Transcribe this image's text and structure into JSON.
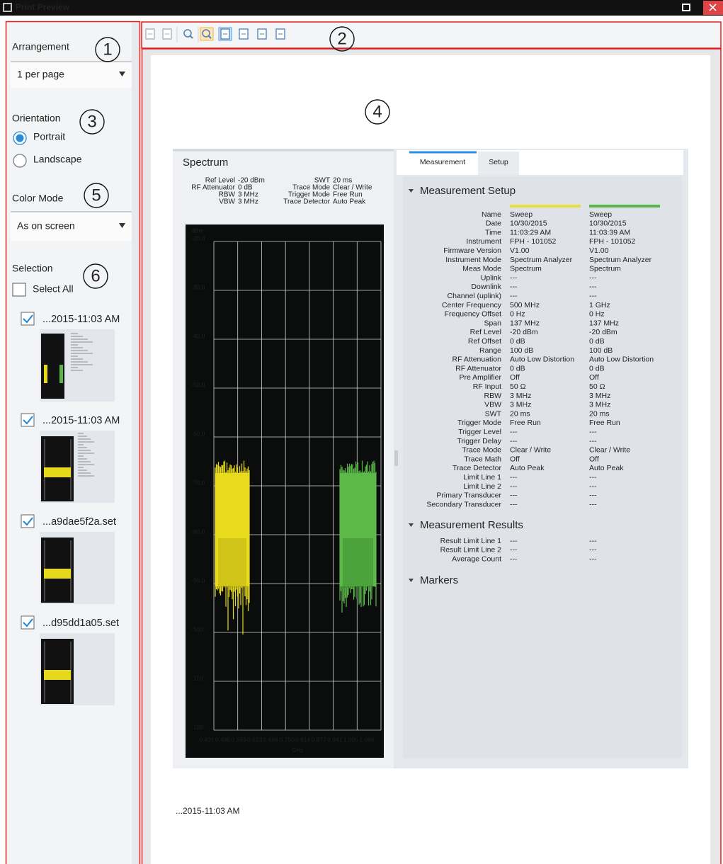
{
  "window": {
    "title": "Print Preview"
  },
  "callouts": [
    "1",
    "2",
    "3",
    "4",
    "5",
    "6"
  ],
  "sidebar": {
    "arrangement": {
      "label": "Arrangement",
      "value": "1 per page"
    },
    "orientation": {
      "label": "Orientation",
      "options": [
        "Portrait",
        "Landscape"
      ]
    },
    "color_mode": {
      "label": "Color Mode",
      "value": "As on screen"
    },
    "selection": {
      "label": "Selection",
      "select_all": "Select All",
      "items": [
        "...2015-11:03 AM",
        "...2015-11:03 AM",
        "...a9dae5f2a.set",
        "...d95dd1a05.set"
      ]
    }
  },
  "preview": {
    "caption": "...2015-11:03 AM",
    "spectrum": {
      "title": "Spectrum",
      "params_left": [
        [
          "Ref Level",
          "-20 dBm"
        ],
        [
          "RF Attenuator",
          "0 dB"
        ],
        [
          "RBW",
          "3 MHz"
        ],
        [
          "VBW",
          "3 MHz"
        ]
      ],
      "params_right": [
        [
          "SWT",
          "20 ms"
        ],
        [
          "Trace Mode",
          "Clear / Write"
        ],
        [
          "Trigger Mode",
          "Free Run"
        ],
        [
          "Trace Detector",
          "Auto Peak"
        ]
      ],
      "y_unit": "dBm",
      "y_labels": [
        "-20.0",
        "-30.0",
        "-40.0",
        "-50.0",
        "-60.0",
        "-70.0",
        "-80.0",
        "-90.0",
        "-100",
        "-110",
        "-120"
      ],
      "x_labels": [
        "0.431",
        "0.495",
        "0.559",
        "0.623",
        "0.686",
        "0.750",
        "0.814",
        "0.877",
        "0.941",
        "1.005",
        "1.068"
      ],
      "x_unit": "GHz"
    },
    "measurement": {
      "tabs": [
        "Measurement",
        "Setup"
      ],
      "setup_title": "Measurement Setup",
      "setup_rows": [
        [
          "Name",
          "Sweep",
          "Sweep"
        ],
        [
          "Date",
          "10/30/2015",
          "10/30/2015"
        ],
        [
          "Time",
          "11:03:29 AM",
          "11:03:39 AM"
        ],
        [
          "Instrument",
          "FPH - 101052",
          "FPH - 101052"
        ],
        [
          "Firmware Version",
          "V1.00",
          "V1.00"
        ],
        [
          "Instrument Mode",
          "Spectrum Analyzer",
          "Spectrum Analyzer"
        ],
        [
          "Meas Mode",
          "Spectrum",
          "Spectrum"
        ],
        [
          "Uplink",
          "---",
          "---"
        ],
        [
          "Downlink",
          "---",
          "---"
        ],
        [
          "Channel (uplink)",
          "---",
          "---"
        ],
        [
          "Center Frequency",
          "500 MHz",
          "1 GHz"
        ],
        [
          "Frequency Offset",
          "0 Hz",
          "0 Hz"
        ],
        [
          "Span",
          "137 MHz",
          "137 MHz"
        ],
        [
          "Ref Level",
          "-20 dBm",
          "-20 dBm"
        ],
        [
          "Ref Offset",
          "0 dB",
          "0 dB"
        ],
        [
          "Range",
          "100 dB",
          "100 dB"
        ],
        [
          "RF Attenuation",
          "Auto Low Distortion",
          "Auto Low Distortion"
        ],
        [
          "RF Attenuator",
          "0 dB",
          "0 dB"
        ],
        [
          "Pre Amplifier",
          "Off",
          "Off"
        ],
        [
          "RF Input",
          "50 Ω",
          "50 Ω"
        ],
        [
          "RBW",
          "3 MHz",
          "3 MHz"
        ],
        [
          "VBW",
          "3 MHz",
          "3 MHz"
        ],
        [
          "SWT",
          "20 ms",
          "20 ms"
        ],
        [
          "Trigger Mode",
          "Free Run",
          "Free Run"
        ],
        [
          "Trigger Level",
          "---",
          "---"
        ],
        [
          "Trigger Delay",
          "---",
          "---"
        ],
        [
          "Trace Mode",
          "Clear / Write",
          "Clear / Write"
        ],
        [
          "Trace Math",
          "Off",
          "Off"
        ],
        [
          "Trace Detector",
          "Auto Peak",
          "Auto Peak"
        ],
        [
          "Limit Line 1",
          "---",
          "---"
        ],
        [
          "Limit Line 2",
          "---",
          "---"
        ],
        [
          "Primary Transducer",
          "---",
          "---"
        ],
        [
          "Secondary Transducer",
          "---",
          "---"
        ]
      ],
      "results_title": "Measurement Results",
      "results_rows": [
        [
          "Result Limit Line 1",
          "---",
          "---"
        ],
        [
          "Result Limit Line 2",
          "---",
          "---"
        ],
        [
          "Average Count",
          "---",
          "---"
        ]
      ],
      "markers_title": "Markers"
    }
  }
}
